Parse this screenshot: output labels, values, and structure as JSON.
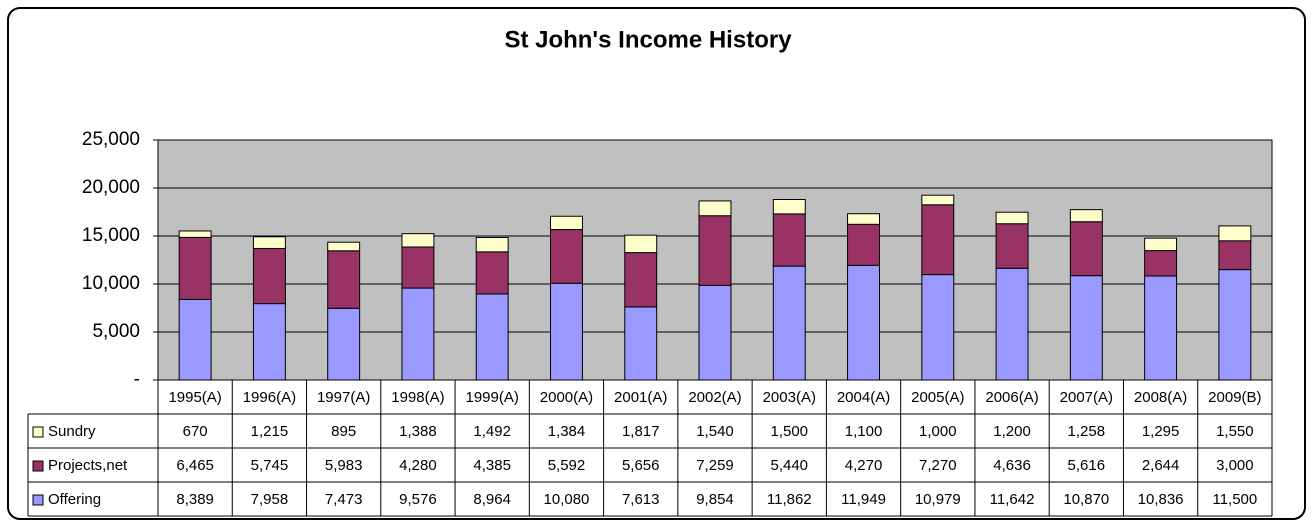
{
  "chart_data": {
    "type": "stacked_bar",
    "title": "St John's Income History",
    "categories": [
      "1995(A)",
      "1996(A)",
      "1997(A)",
      "1998(A)",
      "1999(A)",
      "2000(A)",
      "2001(A)",
      "2002(A)",
      "2003(A)",
      "2004(A)",
      "2005(A)",
      "2006(A)",
      "2007(A)",
      "2008(A)",
      "2009(B)"
    ],
    "series": [
      {
        "name": "Offering",
        "color": "#9999ff",
        "values": [
          8389,
          7958,
          7473,
          9576,
          8964,
          10080,
          7613,
          9854,
          11862,
          11949,
          10979,
          11642,
          10870,
          10836,
          11500
        ],
        "value_labels": [
          "8,389",
          "7,958",
          "7,473",
          "9,576",
          "8,964",
          "10,080",
          "7,613",
          "9,854",
          "11,862",
          "11,949",
          "10,979",
          "11,642",
          "10,870",
          "10,836",
          "11,500"
        ]
      },
      {
        "name": "Projects,net",
        "color": "#993366",
        "values": [
          6465,
          5745,
          5983,
          4280,
          4385,
          5592,
          5656,
          7259,
          5440,
          4270,
          7270,
          4636,
          5616,
          2644,
          3000
        ],
        "value_labels": [
          "6,465",
          "5,745",
          "5,983",
          "4,280",
          "4,385",
          "5,592",
          "5,656",
          "7,259",
          "5,440",
          "4,270",
          "7,270",
          "4,636",
          "5,616",
          "2,644",
          "3,000"
        ]
      },
      {
        "name": "Sundry",
        "color": "#ffffcc",
        "values": [
          670,
          1215,
          895,
          1388,
          1492,
          1384,
          1817,
          1540,
          1500,
          1100,
          1000,
          1200,
          1258,
          1295,
          1550
        ],
        "value_labels": [
          "670",
          "1,215",
          "895",
          "1,388",
          "1,492",
          "1,384",
          "1,817",
          "1,540",
          "1,500",
          "1,100",
          "1,000",
          "1,200",
          "1,258",
          "1,295",
          "1,550"
        ]
      }
    ],
    "ylim": [
      0,
      25000
    ],
    "yticks": [
      {
        "value": 0,
        "label": "-"
      },
      {
        "value": 5000,
        "label": "5,000"
      },
      {
        "value": 10000,
        "label": "10,000"
      },
      {
        "value": 15000,
        "label": "15,000"
      },
      {
        "value": 20000,
        "label": "20,000"
      },
      {
        "value": 25000,
        "label": "25,000"
      }
    ],
    "grid": true,
    "plot_background": "#c0c0c0"
  }
}
